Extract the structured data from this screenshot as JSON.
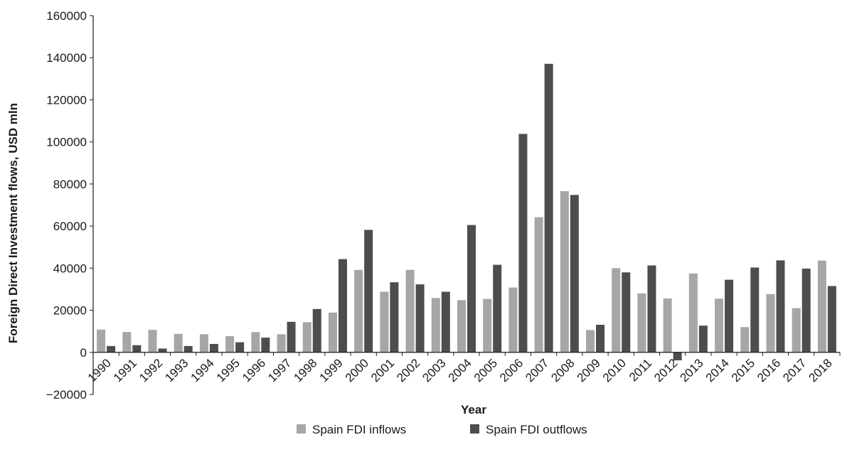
{
  "chart_data": {
    "type": "bar",
    "xlabel": "Year",
    "ylabel": "Foreign Direct Investment flows, USD mln",
    "ylim": [
      -20000,
      160000
    ],
    "yticks": [
      -20000,
      0,
      20000,
      40000,
      60000,
      80000,
      100000,
      120000,
      140000,
      160000
    ],
    "grid": false,
    "legend_position": "bottom",
    "categories": [
      "1990",
      "1991",
      "1992",
      "1993",
      "1994",
      "1995",
      "1996",
      "1997",
      "1998",
      "1999",
      "2000",
      "2001",
      "2002",
      "2003",
      "2004",
      "2005",
      "2006",
      "2007",
      "2008",
      "2009",
      "2010",
      "2011",
      "2012",
      "2013",
      "2014",
      "2015",
      "2016",
      "2017",
      "2018"
    ],
    "series": [
      {
        "name": "Spain FDI inflows",
        "color": "#a6a6a6",
        "values": [
          10800,
          9700,
          10700,
          8800,
          8600,
          7700,
          9600,
          8600,
          14300,
          18900,
          39200,
          28800,
          39200,
          25800,
          24800,
          25400,
          30800,
          64200,
          76600,
          10600,
          40000,
          28000,
          25600,
          37500,
          25500,
          12000,
          27700,
          21000,
          43600
        ]
      },
      {
        "name": "Spain FDI outflows",
        "color": "#4d4d4d",
        "values": [
          3000,
          3400,
          1800,
          3000,
          4000,
          4800,
          7000,
          14500,
          20600,
          44300,
          58200,
          33300,
          32300,
          28800,
          60500,
          41600,
          103800,
          137100,
          74800,
          13100,
          38000,
          41300,
          -3800,
          12700,
          34500,
          40300,
          43700,
          39800,
          31500
        ]
      }
    ]
  }
}
